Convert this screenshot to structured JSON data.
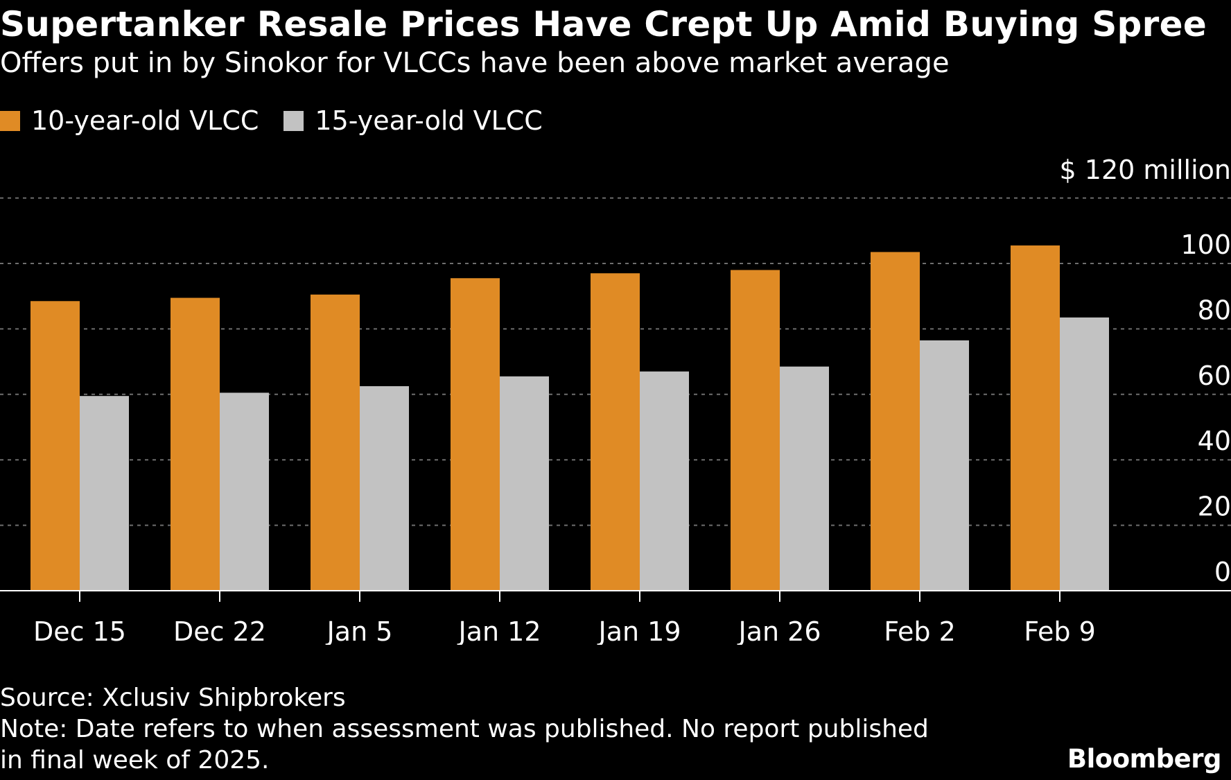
{
  "header": {
    "title": "Supertanker Resale Prices Have Crept Up Amid Buying Spree",
    "subtitle": "Offers put in by Sinokor for VLCCs have been above market average"
  },
  "legend": [
    {
      "label": "10-year-old VLCC",
      "color": "#e08b25"
    },
    {
      "label": "15-year-old VLCC",
      "color": "#c2c2c2"
    }
  ],
  "chart_data": {
    "type": "bar",
    "title": "Supertanker Resale Prices Have Crept Up Amid Buying Spree",
    "ylabel": "$ 120 million",
    "yunit_label": "$ 120 million",
    "ylim": [
      0,
      120
    ],
    "yticks": [
      "100",
      "80",
      "60",
      "40",
      "20",
      "0"
    ],
    "ytick_values": [
      100,
      80,
      60,
      40,
      20,
      0
    ],
    "categories": [
      "Dec 15",
      "Dec 22",
      "Jan 5",
      "Jan 12",
      "Jan 19",
      "Jan 26",
      "Feb 2",
      "Feb 9"
    ],
    "series": [
      {
        "name": "10-year-old VLCC",
        "color": "#e08b25",
        "values": [
          88.5,
          89.5,
          90.5,
          95.5,
          97,
          98,
          103.5,
          105.5
        ]
      },
      {
        "name": "15-year-old VLCC",
        "color": "#c2c2c2",
        "values": [
          59.5,
          60.5,
          62.5,
          65.5,
          67,
          68.5,
          76.5,
          83.5
        ]
      }
    ],
    "grid": true,
    "legend_position": "top-left"
  },
  "footer": {
    "source": "Source: Xclusiv Shipbrokers",
    "note_line1": "Note: Date refers to when assessment was published. No report published",
    "note_line2": "in final week of 2025.",
    "brand": "Bloomberg"
  }
}
